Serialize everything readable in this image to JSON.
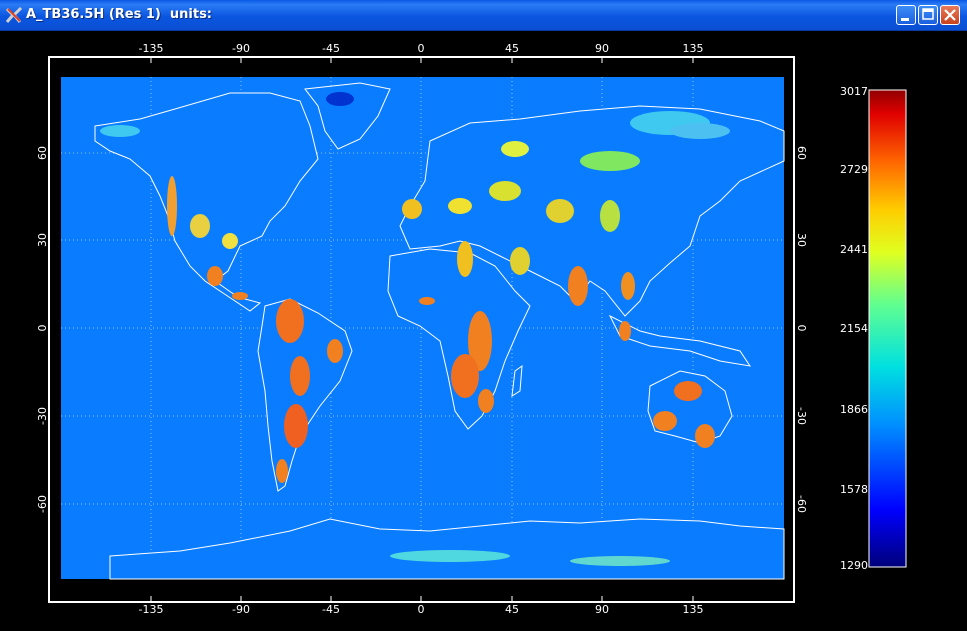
{
  "window": {
    "title": "A_TB36.5H (Res 1)  units:",
    "buttons": {
      "minimize": "minimize-icon",
      "maximize": "maximize-icon",
      "close": "close-icon"
    }
  },
  "map": {
    "lon_labels": [
      "-135",
      "-90",
      "-45",
      "0",
      "45",
      "90",
      "135"
    ],
    "lat_labels": [
      "60",
      "30",
      "0",
      "-30",
      "-60"
    ],
    "colors": {
      "ocean": "#0a7cff",
      "coast": "#ffffff",
      "frame": "#ffffff"
    }
  },
  "colorbar": {
    "labels": [
      "3017",
      "2729",
      "2441",
      "2154",
      "1866",
      "1578",
      "1290"
    ],
    "min": 1290,
    "max": 3017
  }
}
